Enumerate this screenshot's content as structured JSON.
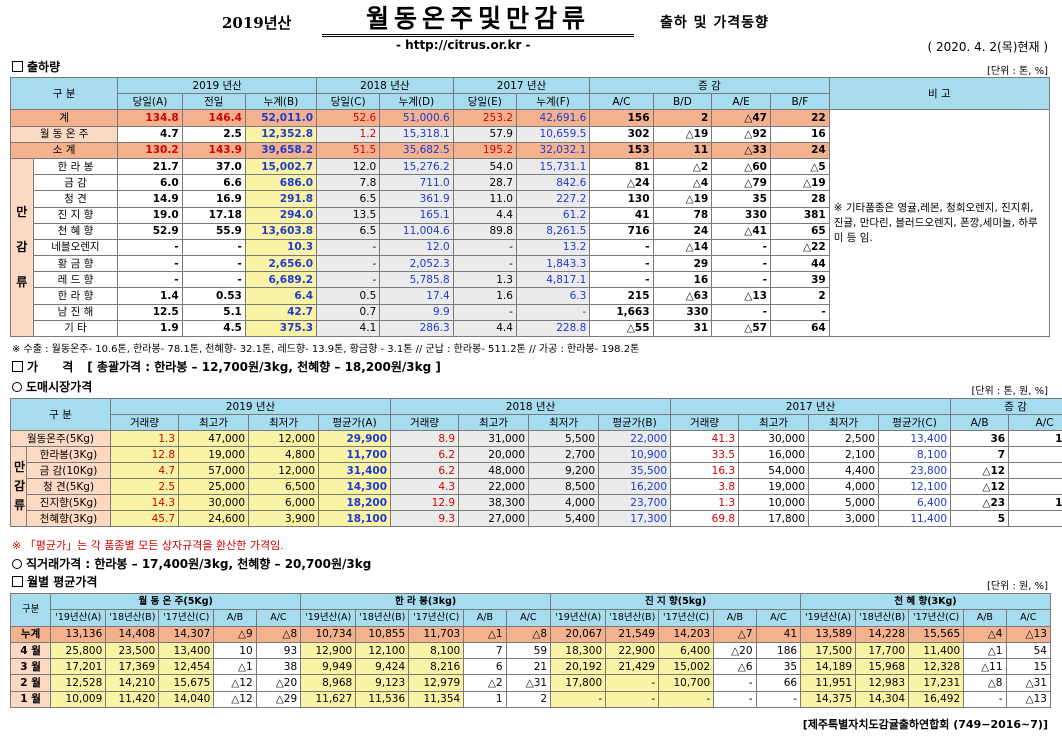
{
  "header": {
    "year": "2019년산",
    "title": "월동온주및만감류",
    "subtitle": "출하 및 가격동향",
    "url": "- http://citrus.or.kr -",
    "date": "( 2020. 4. 2(목)현재 )"
  },
  "shipment": {
    "section_title": "출하량",
    "unit": "[단위 : 톤, %]",
    "h_gubun": "구 분",
    "h_year2019": "2019 년산",
    "h_year2018": "2018 년산",
    "h_year2017": "2017 년산",
    "h_change": "증 감",
    "h_remark": "비 고",
    "subheads": [
      "당일(A)",
      "전일",
      "누계(B)",
      "당일(C)",
      "누계(D)",
      "당일(E)",
      "누계(F)",
      "A/C",
      "B/D",
      "A/E",
      "B/F"
    ],
    "side_label": [
      "만",
      "감",
      "류"
    ],
    "remark": "※ 기타품종은 영귤,레몬, 청희오렌지, 진지휘, 진귤, 만다린, 블러드오렌지, 폰깡,세미놀, 하루미 등 임.",
    "rows": [
      {
        "label": "계",
        "cells": [
          "134.8",
          "146.4",
          "52,011.0",
          "52.6",
          "51,000.6",
          "253.2",
          "42,691.6",
          "156",
          "2",
          "△47",
          "22"
        ]
      },
      {
        "label": "월 동 온 주",
        "cells": [
          "4.7",
          "2.5",
          "12,352.8",
          "1.2",
          "15,318.1",
          "57.9",
          "10,659.5",
          "302",
          "△19",
          "△92",
          "16"
        ]
      },
      {
        "label": "소 계",
        "cells": [
          "130.2",
          "143.9",
          "39,658.2",
          "51.5",
          "35,682.5",
          "195.2",
          "32,032.1",
          "153",
          "11",
          "△33",
          "24"
        ]
      },
      {
        "label": "한 라 봉",
        "cells": [
          "21.7",
          "37.0",
          "15,002.7",
          "12.0",
          "15,276.2",
          "54.0",
          "15,731.1",
          "81",
          "△2",
          "△60",
          "△5"
        ]
      },
      {
        "label": "금 감",
        "cells": [
          "6.0",
          "6.6",
          "686.0",
          "7.8",
          "711.0",
          "28.7",
          "842.6",
          "△24",
          "△4",
          "△79",
          "△19"
        ]
      },
      {
        "label": "청 견",
        "cells": [
          "14.9",
          "16.9",
          "291.8",
          "6.5",
          "361.9",
          "11.0",
          "227.2",
          "130",
          "△19",
          "35",
          "28"
        ]
      },
      {
        "label": "진 지 향",
        "cells": [
          "19.0",
          "17.18",
          "294.0",
          "13.5",
          "165.1",
          "4.4",
          "61.2",
          "41",
          "78",
          "330",
          "381"
        ]
      },
      {
        "label": "천 혜 향",
        "cells": [
          "52.9",
          "55.9",
          "13,603.8",
          "6.5",
          "11,004.6",
          "89.8",
          "8,261.5",
          "716",
          "24",
          "△41",
          "65"
        ]
      },
      {
        "label": "네블오렌지",
        "cells": [
          "-",
          "-",
          "10.3",
          "-",
          "12.0",
          "-",
          "13.2",
          "-",
          "△14",
          "-",
          "△22"
        ]
      },
      {
        "label": "황 금 향",
        "cells": [
          "-",
          "-",
          "2,656.0",
          "-",
          "2,052.3",
          "-",
          "1,843.3",
          "-",
          "29",
          "-",
          "44"
        ]
      },
      {
        "label": "레 드 향",
        "cells": [
          "-",
          "-",
          "6,689.2",
          "-",
          "5,785.8",
          "1.3",
          "4,817.1",
          "-",
          "16",
          "-",
          "39"
        ]
      },
      {
        "label": "한 라 향",
        "cells": [
          "1.4",
          "0.53",
          "6.4",
          "0.5",
          "17.4",
          "1.6",
          "6.3",
          "215",
          "△63",
          "△13",
          "2"
        ]
      },
      {
        "label": "남 진 해",
        "cells": [
          "12.5",
          "5.1",
          "42.7",
          "0.7",
          "9.9",
          "-",
          "-",
          "1,663",
          "330",
          "-",
          "-"
        ]
      },
      {
        "label": "기 타",
        "cells": [
          "1.9",
          "4.5",
          "375.3",
          "4.1",
          "286.3",
          "4.4",
          "228.8",
          "△55",
          "31",
          "△57",
          "64"
        ]
      }
    ],
    "note": "※ 수출 : 월동온주- 10.6톤, 한라봉- 78.1톤, 천혜향- 32.1톤, 레드향- 13.9톤, 황금향 - 3.1톤  // 군납 : 한라봉- 511.2톤  // 가공 : 한라봉- 198.2톤"
  },
  "price": {
    "section_title": "가 격",
    "section_extra": "[ 총괄가격 : 한라봉 – 12,700원/3kg, 천혜향 – 18,200원/3kg ]",
    "wholesale_title": "도매시장가격",
    "unit": "[단위 : 톤, 원, %]",
    "h_gubun": "구 분",
    "h_year2019": "2019 년산",
    "h_year2018": "2018 년산",
    "h_year2017": "2017 년산",
    "h_change": "증 감",
    "subheads": [
      "거래량",
      "최고가",
      "최저가",
      "평균가(A)",
      "거래량",
      "최고가",
      "최저가",
      "평균가(B)",
      "거래량",
      "최고가",
      "최저가",
      "평균가(C)",
      "A/B",
      "A/C"
    ],
    "side_label": [
      "만",
      "감",
      "류"
    ],
    "rows": [
      {
        "label": "월동온주(5Kg)",
        "cells": [
          "1.3",
          "47,000",
          "12,000",
          "29,900",
          "8.9",
          "31,000",
          "5,500",
          "22,000",
          "41.3",
          "30,000",
          "2,500",
          "13,400",
          "36",
          "123"
        ]
      },
      {
        "label": "한라봉(3Kg)",
        "cells": [
          "12.8",
          "19,000",
          "4,800",
          "11,700",
          "6.2",
          "20,000",
          "2,700",
          "10,900",
          "33.5",
          "16,000",
          "2,100",
          "8,100",
          "7",
          "44"
        ]
      },
      {
        "label": "금 감(10Kg)",
        "cells": [
          "4.7",
          "57,000",
          "12,000",
          "31,400",
          "6.2",
          "48,000",
          "9,200",
          "35,500",
          "16.3",
          "54,000",
          "4,400",
          "23,800",
          "△12",
          "32"
        ]
      },
      {
        "label": "청 견(5Kg)",
        "cells": [
          "2.5",
          "25,000",
          "6,500",
          "14,300",
          "4.3",
          "22,000",
          "8,500",
          "16,200",
          "3.8",
          "19,000",
          "4,000",
          "12,100",
          "△12",
          "18"
        ]
      },
      {
        "label": "진지향(5Kg)",
        "cells": [
          "14.3",
          "30,000",
          "6,000",
          "18,200",
          "12.9",
          "38,300",
          "4,000",
          "23,700",
          "1.3",
          "10,000",
          "5,000",
          "6,400",
          "△23",
          "184"
        ]
      },
      {
        "label": "천혜향(3Kg)",
        "cells": [
          "45.7",
          "24,600",
          "3,900",
          "18,100",
          "9.3",
          "27,000",
          "5,400",
          "17,300",
          "69.8",
          "17,800",
          "3,000",
          "11,400",
          "5",
          "59"
        ]
      }
    ],
    "note": "※ 「평균가」는 각 품종별 모든 상자규격을 환산한 가격임.",
    "direct_title": "직거래가격 : 한라봉 – 17,400원/3kg,  천혜향 – 20,700원/3kg"
  },
  "monthly": {
    "section_title": "월별 평균가격",
    "unit": "[단위 : 원, %]",
    "h_gubun": "구분",
    "groups": [
      "월 동 온 주(5Kg)",
      "한 라 봉(3kg)",
      "진 지 향(5kg)",
      "천 혜 향(3Kg)"
    ],
    "subheads": [
      "'19년산(A)",
      "'18년산(B)",
      "'17년산(C)",
      "A/B",
      "A/C"
    ],
    "rows": [
      {
        "label": "누계",
        "cells": [
          "13,136",
          "14,408",
          "14,307",
          "△9",
          "△8",
          "10,734",
          "10,855",
          "11,703",
          "△1",
          "△8",
          "20,067",
          "21,549",
          "14,203",
          "△7",
          "41",
          "13,589",
          "14,228",
          "15,565",
          "△4",
          "△13"
        ]
      },
      {
        "label": "4 월",
        "cells": [
          "25,800",
          "23,500",
          "13,400",
          "10",
          "93",
          "12,900",
          "12,100",
          "8,100",
          "7",
          "59",
          "18,300",
          "22,900",
          "6,400",
          "△20",
          "186",
          "17,500",
          "17,700",
          "11,400",
          "△1",
          "54"
        ]
      },
      {
        "label": "3 월",
        "cells": [
          "17,201",
          "17,369",
          "12,454",
          "△1",
          "38",
          "9,949",
          "9,424",
          "8,216",
          "6",
          "21",
          "20,192",
          "21,429",
          "15,002",
          "△6",
          "35",
          "14,189",
          "15,968",
          "12,328",
          "△11",
          "15"
        ]
      },
      {
        "label": "2 월",
        "cells": [
          "12,528",
          "14,210",
          "15,675",
          "△12",
          "△20",
          "8,968",
          "9,123",
          "12,979",
          "△2",
          "△31",
          "17,800",
          "-",
          "10,700",
          "-",
          "66",
          "11,951",
          "12,983",
          "17,231",
          "△8",
          "△31"
        ]
      },
      {
        "label": "1 월",
        "cells": [
          "10,009",
          "11,420",
          "14,040",
          "△12",
          "△29",
          "11,627",
          "11,536",
          "11,354",
          "1",
          "2",
          "-",
          "-",
          "-",
          "-",
          "-",
          "14,375",
          "14,304",
          "16,492",
          "-",
          "△13"
        ]
      }
    ]
  },
  "footer": "[제주특별자치도감귤출하연합회 (749−2016~7)]"
}
